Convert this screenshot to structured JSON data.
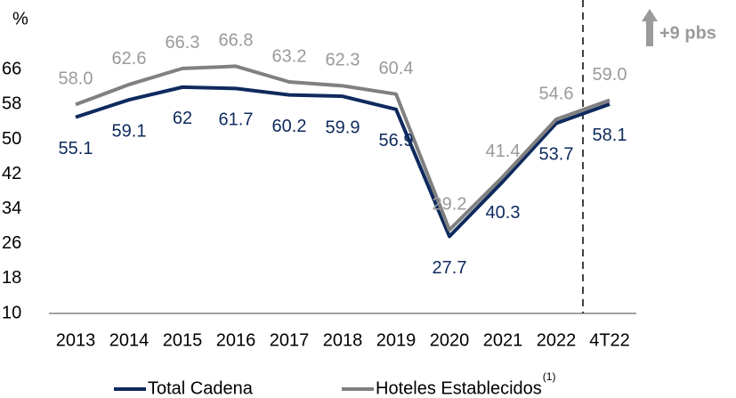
{
  "chart_data": {
    "type": "line",
    "y_label": "%",
    "categories": [
      "2013",
      "2014",
      "2015",
      "2016",
      "2017",
      "2018",
      "2019",
      "2020",
      "2021",
      "2022",
      "4T22"
    ],
    "series": [
      {
        "name": "Total Cadena",
        "color": "#0e2a5e",
        "label_color": "#0e2a5e",
        "values": [
          55.1,
          59.1,
          62,
          61.7,
          60.2,
          59.9,
          56.9,
          27.7,
          40.3,
          53.7,
          58.1
        ]
      },
      {
        "name": "Hoteles Establecidos",
        "color": "#808080",
        "label_color": "#9a9a9a",
        "values": [
          58.0,
          62.6,
          66.3,
          66.8,
          63.2,
          62.3,
          60.4,
          29.2,
          41.4,
          54.6,
          59.0
        ],
        "value_labels": [
          "58.0",
          "62.6",
          "66.3",
          "66.8",
          "63.2",
          "62.3",
          "60.4",
          "29.2",
          "41.4",
          "54.6",
          "59.0"
        ]
      }
    ],
    "legend_superscript": "(1)",
    "annotation": "+9 pbs",
    "ylim": [
      10,
      72
    ],
    "yticks": [
      10,
      18,
      26,
      34,
      42,
      50,
      58,
      66
    ]
  }
}
